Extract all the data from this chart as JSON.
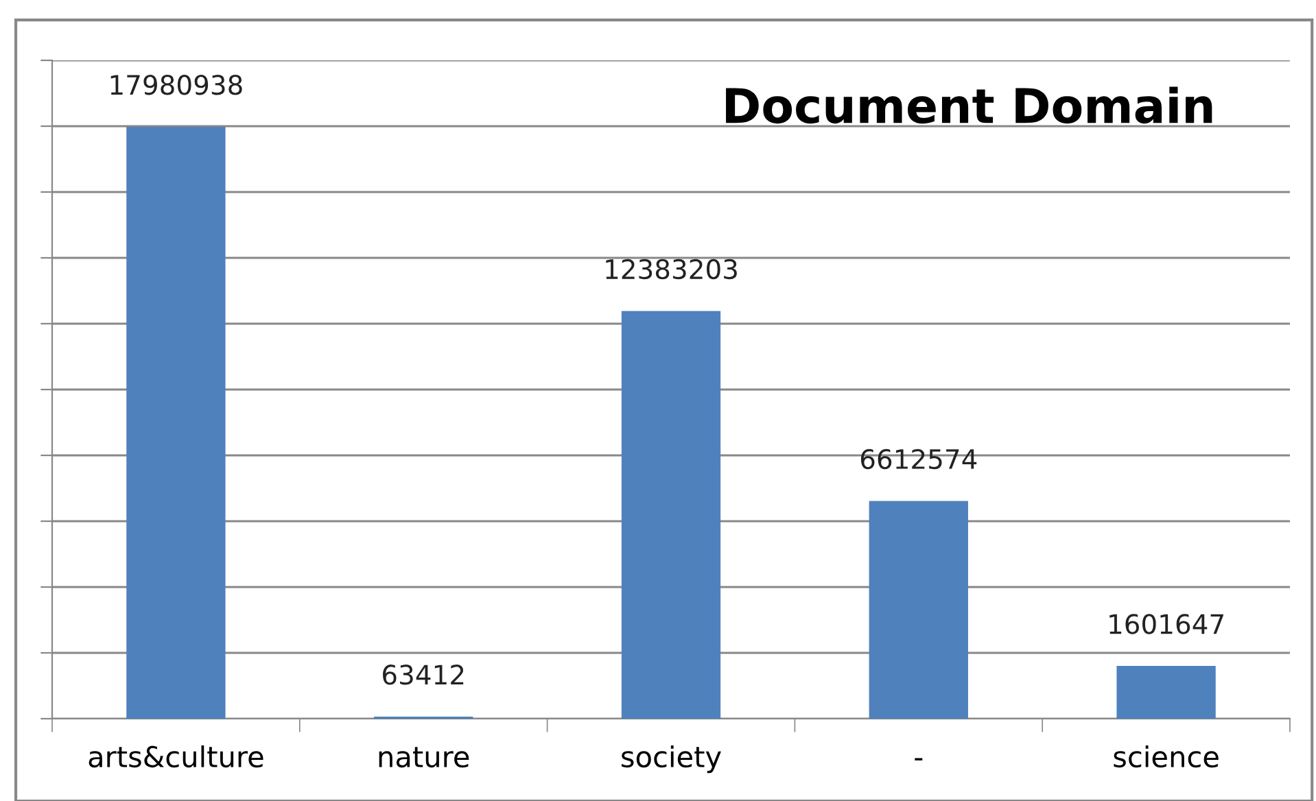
{
  "chart_data": {
    "type": "bar",
    "title": "Document Domain",
    "categories": [
      "arts&culture",
      "nature",
      "society",
      "-",
      "science"
    ],
    "values": [
      17980938,
      63412,
      12383203,
      6612574,
      1601647
    ],
    "color": "#4f81bd",
    "data_labels": true,
    "ylim": [
      0,
      20000000
    ],
    "yticks": [
      {
        "value": 0,
        "label": null
      },
      {
        "value": 2000000,
        "label": null
      },
      {
        "value": 4000000,
        "label": null
      },
      {
        "value": 6000000,
        "label": null
      },
      {
        "value": 8000000,
        "label": null
      },
      {
        "value": 10000000,
        "label": null
      },
      {
        "value": 12000000,
        "label": null
      },
      {
        "value": 14000000,
        "label": null
      },
      {
        "value": 16000000,
        "label": null
      },
      {
        "value": 18000000,
        "label": null
      },
      {
        "value": 20000000,
        "label": null
      }
    ],
    "tick_labels": "x",
    "grid": "y",
    "legend": false
  }
}
